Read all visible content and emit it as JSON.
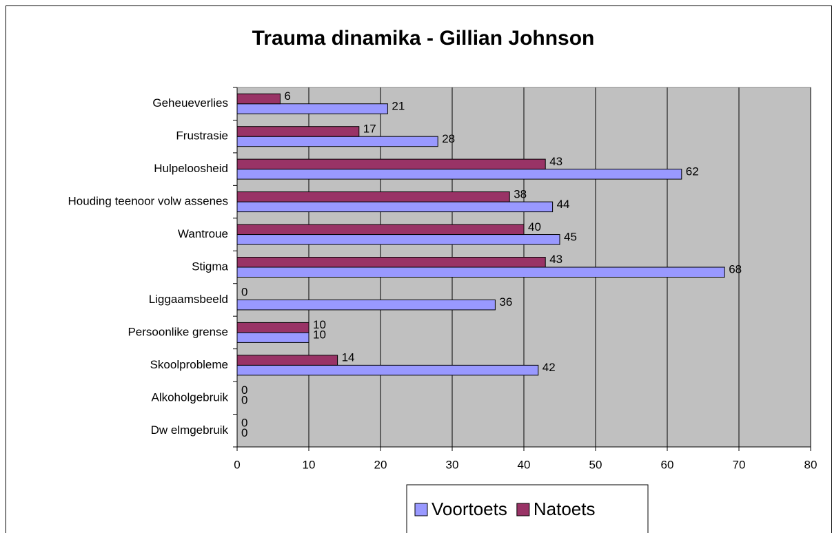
{
  "chart_data": {
    "type": "hbar",
    "title": "Trauma dinamika - Gillian Johnson",
    "categories": [
      "Geheueverlies",
      "Frustrasie",
      "Hulpeloosheid",
      "Houding teenoor volw assenes",
      "Wantroue",
      "Stigma",
      "Liggaamsbeeld",
      "Persoonlike grense",
      "Skoolprobleme",
      "Alkoholgebruik",
      "Dw elmgebruik"
    ],
    "series": [
      {
        "name": "Voortoets",
        "color": "#9999FF",
        "values": [
          21,
          28,
          62,
          44,
          45,
          68,
          36,
          10,
          42,
          0,
          0
        ]
      },
      {
        "name": "Natoets",
        "color": "#993366",
        "values": [
          6,
          17,
          43,
          38,
          40,
          43,
          0,
          10,
          14,
          0,
          0
        ]
      }
    ],
    "xlim": [
      0,
      80
    ],
    "xticks": [
      0,
      10,
      20,
      30,
      40,
      50,
      60,
      70,
      80
    ],
    "grid": true,
    "legend": "bottom"
  }
}
